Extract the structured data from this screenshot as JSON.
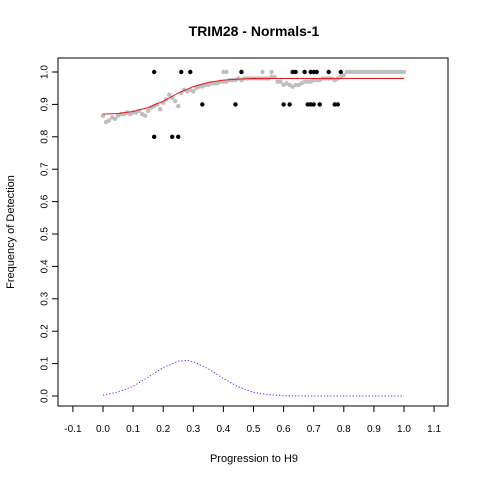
{
  "chart_data": {
    "type": "scatter",
    "title": "TRIM28 - Normals-1",
    "xlabel": "Progression to H9",
    "ylabel": "Frequency of Detection",
    "xlim": [
      -0.1,
      1.1
    ],
    "ylim": [
      0.0,
      1.0
    ],
    "x_ticks": [
      "-0.1",
      "0.0",
      "0.1",
      "0.2",
      "0.3",
      "0.4",
      "0.5",
      "0.6",
      "0.7",
      "0.8",
      "0.9",
      "1.0",
      "1.1"
    ],
    "y_ticks": [
      "0.0",
      "0.1",
      "0.2",
      "0.3",
      "0.4",
      "0.5",
      "0.6",
      "0.7",
      "0.8",
      "0.9",
      "1.0"
    ],
    "colors": {
      "observed": "#000000",
      "smoothed": "#bebebe",
      "fit": "#e41a1c",
      "density": "#3333ff"
    },
    "series": [
      {
        "name": "observed",
        "style": "points",
        "points": [
          [
            0.17,
            1.0
          ],
          [
            0.17,
            0.8
          ],
          [
            0.23,
            0.8
          ],
          [
            0.25,
            0.8
          ],
          [
            0.26,
            1.0
          ],
          [
            0.29,
            1.0
          ],
          [
            0.33,
            0.9
          ],
          [
            0.44,
            0.9
          ],
          [
            0.46,
            1.0
          ],
          [
            0.6,
            0.9
          ],
          [
            0.62,
            0.9
          ],
          [
            0.63,
            1.0
          ],
          [
            0.64,
            1.0
          ],
          [
            0.67,
            1.0
          ],
          [
            0.68,
            0.9
          ],
          [
            0.69,
            1.0
          ],
          [
            0.69,
            0.9
          ],
          [
            0.7,
            1.0
          ],
          [
            0.7,
            0.9
          ],
          [
            0.71,
            1.0
          ],
          [
            0.72,
            0.9
          ],
          [
            0.75,
            1.0
          ],
          [
            0.77,
            0.9
          ],
          [
            0.78,
            0.9
          ],
          [
            0.79,
            1.0
          ]
        ]
      },
      {
        "name": "smoothed",
        "style": "points",
        "points": [
          [
            0.0,
            0.865
          ],
          [
            0.01,
            0.845
          ],
          [
            0.02,
            0.85
          ],
          [
            0.03,
            0.86
          ],
          [
            0.04,
            0.855
          ],
          [
            0.05,
            0.865
          ],
          [
            0.06,
            0.87
          ],
          [
            0.07,
            0.87
          ],
          [
            0.08,
            0.875
          ],
          [
            0.09,
            0.87
          ],
          [
            0.1,
            0.875
          ],
          [
            0.11,
            0.875
          ],
          [
            0.12,
            0.88
          ],
          [
            0.13,
            0.87
          ],
          [
            0.14,
            0.865
          ],
          [
            0.15,
            0.88
          ],
          [
            0.16,
            0.89
          ],
          [
            0.17,
            0.895
          ],
          [
            0.18,
            0.9
          ],
          [
            0.19,
            0.885
          ],
          [
            0.2,
            0.905
          ],
          [
            0.21,
            0.915
          ],
          [
            0.22,
            0.93
          ],
          [
            0.23,
            0.92
          ],
          [
            0.24,
            0.91
          ],
          [
            0.25,
            0.895
          ],
          [
            0.26,
            0.935
          ],
          [
            0.27,
            0.945
          ],
          [
            0.28,
            0.94
          ],
          [
            0.29,
            0.945
          ],
          [
            0.3,
            0.94
          ],
          [
            0.31,
            0.95
          ],
          [
            0.32,
            0.955
          ],
          [
            0.33,
            0.955
          ],
          [
            0.34,
            0.96
          ],
          [
            0.35,
            0.96
          ],
          [
            0.36,
            0.965
          ],
          [
            0.37,
            0.965
          ],
          [
            0.38,
            0.965
          ],
          [
            0.39,
            0.97
          ],
          [
            0.4,
            0.97
          ],
          [
            0.41,
            0.97
          ],
          [
            0.42,
            0.975
          ],
          [
            0.43,
            0.975
          ],
          [
            0.44,
            0.975
          ],
          [
            0.45,
            0.98
          ],
          [
            0.46,
            0.975
          ],
          [
            0.47,
            0.98
          ],
          [
            0.48,
            0.98
          ],
          [
            0.49,
            0.98
          ],
          [
            0.5,
            0.98
          ],
          [
            0.51,
            0.98
          ],
          [
            0.52,
            0.98
          ],
          [
            0.53,
            0.98
          ],
          [
            0.54,
            0.98
          ],
          [
            0.55,
            0.98
          ],
          [
            0.56,
            0.985
          ],
          [
            0.57,
            0.985
          ],
          [
            0.58,
            0.97
          ],
          [
            0.59,
            0.97
          ],
          [
            0.6,
            0.96
          ],
          [
            0.61,
            0.965
          ],
          [
            0.62,
            0.96
          ],
          [
            0.63,
            0.955
          ],
          [
            0.64,
            0.96
          ],
          [
            0.65,
            0.96
          ],
          [
            0.66,
            0.965
          ],
          [
            0.67,
            0.97
          ],
          [
            0.68,
            0.97
          ],
          [
            0.69,
            0.97
          ],
          [
            0.7,
            0.975
          ],
          [
            0.71,
            0.975
          ],
          [
            0.72,
            0.975
          ],
          [
            0.73,
            0.98
          ],
          [
            0.74,
            0.98
          ],
          [
            0.75,
            0.98
          ],
          [
            0.76,
            0.98
          ],
          [
            0.77,
            0.975
          ],
          [
            0.78,
            0.98
          ],
          [
            0.79,
            0.985
          ],
          [
            0.8,
            0.99
          ],
          [
            0.81,
            1.0
          ],
          [
            0.82,
            1.0
          ],
          [
            0.83,
            1.0
          ],
          [
            0.84,
            1.0
          ],
          [
            0.85,
            1.0
          ],
          [
            0.86,
            1.0
          ],
          [
            0.87,
            1.0
          ],
          [
            0.88,
            1.0
          ],
          [
            0.89,
            1.0
          ],
          [
            0.9,
            1.0
          ],
          [
            0.91,
            1.0
          ],
          [
            0.92,
            1.0
          ],
          [
            0.93,
            1.0
          ],
          [
            0.94,
            1.0
          ],
          [
            0.95,
            1.0
          ],
          [
            0.96,
            1.0
          ],
          [
            0.97,
            1.0
          ],
          [
            0.98,
            1.0
          ],
          [
            0.99,
            1.0
          ],
          [
            1.0,
            1.0
          ],
          [
            0.4,
            1.0
          ],
          [
            0.41,
            1.0
          ],
          [
            0.53,
            1.0
          ],
          [
            0.56,
            1.0
          ]
        ]
      },
      {
        "name": "fit",
        "style": "line",
        "points": [
          [
            0.0,
            0.87
          ],
          [
            0.05,
            0.872
          ],
          [
            0.1,
            0.878
          ],
          [
            0.15,
            0.89
          ],
          [
            0.2,
            0.91
          ],
          [
            0.25,
            0.935
          ],
          [
            0.3,
            0.955
          ],
          [
            0.35,
            0.968
          ],
          [
            0.4,
            0.975
          ],
          [
            0.45,
            0.978
          ],
          [
            0.5,
            0.98
          ],
          [
            0.6,
            0.98
          ],
          [
            0.7,
            0.98
          ],
          [
            0.8,
            0.98
          ],
          [
            0.9,
            0.98
          ],
          [
            1.0,
            0.98
          ]
        ]
      },
      {
        "name": "density",
        "style": "dotted",
        "points": [
          [
            0.0,
            0.003
          ],
          [
            0.05,
            0.012
          ],
          [
            0.1,
            0.03
          ],
          [
            0.15,
            0.058
          ],
          [
            0.2,
            0.088
          ],
          [
            0.25,
            0.107
          ],
          [
            0.28,
            0.11
          ],
          [
            0.3,
            0.106
          ],
          [
            0.35,
            0.084
          ],
          [
            0.4,
            0.054
          ],
          [
            0.45,
            0.028
          ],
          [
            0.5,
            0.011
          ],
          [
            0.55,
            0.004
          ],
          [
            0.6,
            0.001
          ],
          [
            0.7,
            0.0
          ],
          [
            0.8,
            0.0
          ],
          [
            0.9,
            0.0
          ],
          [
            1.0,
            0.0
          ]
        ]
      }
    ]
  }
}
